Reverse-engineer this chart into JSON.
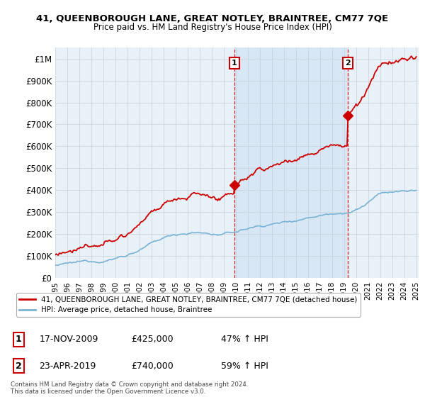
{
  "title1": "41, QUEENBOROUGH LANE, GREAT NOTLEY, BRAINTREE, CM77 7QE",
  "title2": "Price paid vs. HM Land Registry's House Price Index (HPI)",
  "ylabel_ticks": [
    "£0",
    "£100K",
    "£200K",
    "£300K",
    "£400K",
    "£500K",
    "£600K",
    "£700K",
    "£800K",
    "£900K",
    "£1M"
  ],
  "ytick_values": [
    0,
    100000,
    200000,
    300000,
    400000,
    500000,
    600000,
    700000,
    800000,
    900000,
    1000000
  ],
  "ylim": [
    0,
    1050000
  ],
  "xlim_left": 1995.0,
  "xlim_right": 2025.2,
  "legend_line1": "41, QUEENBOROUGH LANE, GREAT NOTLEY, BRAINTREE, CM77 7QE (detached house)",
  "legend_line2": "HPI: Average price, detached house, Braintree",
  "marker1_date": 2009.88,
  "marker1_price": 425000,
  "marker1_label": "1",
  "marker2_date": 2019.31,
  "marker2_price": 740000,
  "marker2_label": "2",
  "note": "Contains HM Land Registry data © Crown copyright and database right 2024.\nThis data is licensed under the Open Government Licence v3.0.",
  "hpi_color": "#7ab3d4",
  "price_color": "#cc0000",
  "bg_color": "#e8f0f8",
  "shade_color": "#d0e4f5",
  "plot_bg": "#ffffff",
  "grid_color": "#c8d0d8"
}
